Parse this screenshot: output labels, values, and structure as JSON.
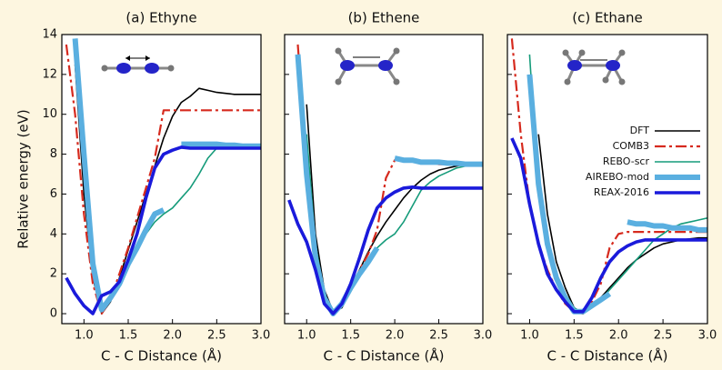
{
  "chart_data": [
    {
      "type": "line",
      "title": "(a) Ethyne",
      "xlabel": "C - C Distance (Å)",
      "ylabel": "Relative energy (eV)",
      "xlim": [
        0.75,
        3.0
      ],
      "ylim": [
        -0.5,
        14
      ],
      "xticks": [
        {
          "value": 1.0,
          "label": "1.0"
        },
        1.5,
        {
          "value": 2.0,
          "label": "2.0"
        },
        2.5,
        {
          "value": 3.0,
          "label": "3.0"
        }
      ],
      "yticks": [
        0,
        2,
        4,
        6,
        8,
        10,
        12,
        14
      ],
      "x": [
        0.8,
        0.9,
        1.0,
        1.1,
        1.2,
        1.3,
        1.4,
        1.5,
        1.6,
        1.7,
        1.8,
        1.9,
        2.0,
        2.1,
        2.2,
        2.3,
        2.4,
        2.5,
        2.6,
        2.7,
        2.8,
        2.9,
        3.0
      ],
      "series": [
        {
          "color": "#000000",
          "style": "solid",
          "values": [
            null,
            12.5,
            6.0,
            1.8,
            0.0,
            0.6,
            1.8,
            3.2,
            4.6,
            6.0,
            7.4,
            8.8,
            9.9,
            10.6,
            10.9,
            11.3,
            11.2,
            11.1,
            11.05,
            11.0,
            11.0,
            11.0,
            11.0
          ]
        },
        {
          "color": "#d62a1e",
          "style": "dashed",
          "values": [
            13.5,
            10.0,
            5.0,
            1.5,
            0.0,
            0.7,
            2.0,
            3.3,
            4.8,
            6.3,
            7.8,
            10.2,
            10.2,
            10.2,
            10.2,
            10.2,
            10.2,
            10.2,
            10.2,
            10.2,
            10.2,
            10.2,
            10.2
          ]
        },
        {
          "color": "#159b7a",
          "style": "solid",
          "values": [
            null,
            null,
            7.0,
            2.5,
            0.1,
            0.8,
            1.6,
            2.5,
            3.3,
            4.0,
            4.6,
            5.0,
            5.3,
            5.8,
            6.3,
            7.0,
            7.8,
            8.3,
            8.3,
            8.3,
            8.3,
            8.3,
            8.3
          ]
        },
        {
          "color": "#5aafe0",
          "style": "thick",
          "values": [
            null,
            13.8,
            8.0,
            2.5,
            0.2,
            0.8,
            1.5,
            2.5,
            3.3,
            4.2,
            5.0,
            5.2,
            null,
            8.5,
            8.5,
            8.5,
            8.5,
            8.5,
            8.45,
            8.45,
            8.4,
            8.4,
            8.4
          ]
        },
        {
          "color": "#1a1adb",
          "style": "medium",
          "values": [
            1.8,
            1.0,
            0.4,
            0.0,
            0.9,
            1.1,
            1.6,
            2.7,
            4.0,
            5.8,
            7.3,
            8.0,
            8.2,
            8.35,
            8.3,
            8.3,
            8.3,
            8.3,
            8.3,
            8.3,
            8.3,
            8.3,
            8.3
          ]
        }
      ]
    },
    {
      "type": "line",
      "title": "(b) Ethene",
      "xlabel": "C - C Distance (Å)",
      "xlim": [
        0.75,
        3.0
      ],
      "ylim": [
        -0.5,
        14
      ],
      "xticks": [
        {
          "value": 1.0,
          "label": "1.0"
        },
        1.5,
        {
          "value": 2.0,
          "label": "2.0"
        },
        2.5,
        {
          "value": 3.0,
          "label": "3.0"
        }
      ],
      "yticks": [
        0,
        2,
        4,
        6,
        8,
        10,
        12,
        14
      ],
      "x": [
        0.8,
        0.9,
        1.0,
        1.1,
        1.2,
        1.3,
        1.4,
        1.5,
        1.6,
        1.7,
        1.8,
        1.9,
        2.0,
        2.1,
        2.2,
        2.3,
        2.4,
        2.5,
        2.6,
        2.7,
        2.8,
        2.9,
        3.0
      ],
      "series": [
        {
          "color": "#000000",
          "style": "solid",
          "values": [
            null,
            null,
            10.5,
            4.0,
            1.2,
            0.1,
            0.3,
            1.2,
            2.2,
            3.1,
            3.9,
            4.6,
            5.2,
            5.8,
            6.3,
            6.7,
            7.0,
            7.2,
            7.3,
            7.4,
            7.5,
            7.5,
            7.5
          ]
        },
        {
          "color": "#d62a1e",
          "style": "dashed",
          "values": [
            null,
            13.5,
            7.5,
            3.0,
            0.8,
            0.0,
            0.4,
            1.2,
            2.2,
            3.0,
            4.2,
            6.8,
            7.7,
            7.7,
            7.6,
            7.6,
            7.6,
            7.5,
            7.5,
            7.5,
            7.5,
            7.5,
            7.5
          ]
        },
        {
          "color": "#159b7a",
          "style": "solid",
          "values": [
            null,
            null,
            9.0,
            3.5,
            1.0,
            0.0,
            0.4,
            1.2,
            2.0,
            2.8,
            3.3,
            3.7,
            4.0,
            4.6,
            5.4,
            6.2,
            6.6,
            6.9,
            7.1,
            7.3,
            7.4,
            7.5,
            7.5
          ]
        },
        {
          "color": "#5aafe0",
          "style": "thick",
          "values": [
            null,
            13.0,
            7.0,
            2.8,
            0.8,
            0.0,
            0.5,
            1.3,
            2.0,
            2.6,
            3.3,
            null,
            7.8,
            7.7,
            7.7,
            7.6,
            7.6,
            7.6,
            7.55,
            7.55,
            7.5,
            7.5,
            7.5
          ]
        },
        {
          "color": "#1a1adb",
          "style": "medium",
          "values": [
            5.7,
            4.5,
            3.6,
            2.2,
            0.5,
            0.0,
            0.5,
            1.5,
            2.8,
            4.2,
            5.3,
            5.8,
            6.1,
            6.3,
            6.35,
            6.3,
            6.3,
            6.3,
            6.3,
            6.3,
            6.3,
            6.3,
            6.3
          ]
        }
      ]
    },
    {
      "type": "line",
      "title": "(c) Ethane",
      "xlabel": "C - C Distance (Å)",
      "xlim": [
        0.75,
        3.0
      ],
      "ylim": [
        -0.5,
        14
      ],
      "xticks": [
        {
          "value": 1.0,
          "label": "1.0"
        },
        1.5,
        {
          "value": 2.0,
          "label": "2.0"
        },
        2.5,
        {
          "value": 3.0,
          "label": "3.0"
        }
      ],
      "yticks": [
        0,
        2,
        4,
        6,
        8,
        10,
        12,
        14
      ],
      "x": [
        0.8,
        0.9,
        1.0,
        1.1,
        1.2,
        1.3,
        1.4,
        1.5,
        1.6,
        1.7,
        1.8,
        1.9,
        2.0,
        2.1,
        2.2,
        2.3,
        2.4,
        2.5,
        2.6,
        2.7,
        2.8,
        2.9,
        3.0
      ],
      "legend": "upper right",
      "series": [
        {
          "name": "DFT",
          "color": "#000000",
          "style": "solid",
          "values": [
            null,
            null,
            null,
            9.0,
            5.0,
            2.6,
            1.3,
            0.3,
            0.0,
            0.3,
            0.8,
            1.3,
            1.8,
            2.3,
            2.7,
            3.0,
            3.3,
            3.5,
            3.6,
            3.7,
            3.75,
            3.8,
            3.8
          ]
        },
        {
          "name": "COMB3",
          "color": "#d62a1e",
          "style": "dashed",
          "values": [
            13.8,
            9.0,
            5.5,
            3.5,
            2.2,
            1.2,
            0.5,
            0.1,
            0.0,
            0.6,
            1.5,
            3.3,
            4.0,
            4.1,
            4.1,
            4.1,
            4.1,
            4.1,
            4.1,
            4.1,
            4.1,
            4.1,
            4.1
          ]
        },
        {
          "name": "REBO-scr",
          "color": "#159b7a",
          "style": "solid",
          "values": [
            null,
            null,
            13.0,
            6.0,
            3.5,
            2.0,
            1.0,
            0.3,
            0.0,
            0.3,
            0.7,
            1.2,
            1.7,
            2.2,
            2.7,
            3.2,
            3.7,
            4.0,
            4.3,
            4.5,
            4.6,
            4.7,
            4.8
          ]
        },
        {
          "name": "AIREBO-mod",
          "color": "#5aafe0",
          "style": "thick",
          "values": [
            null,
            null,
            12.0,
            6.5,
            3.5,
            1.8,
            0.8,
            0.1,
            0.1,
            0.4,
            0.7,
            1.0,
            null,
            4.6,
            4.5,
            4.5,
            4.4,
            4.4,
            4.3,
            4.3,
            4.3,
            4.2,
            4.2
          ]
        },
        {
          "name": "REAX-2016",
          "color": "#1a1adb",
          "style": "medium",
          "values": [
            8.8,
            7.8,
            5.5,
            3.5,
            2.0,
            1.2,
            0.6,
            0.1,
            0.1,
            0.8,
            1.8,
            2.6,
            3.1,
            3.4,
            3.6,
            3.7,
            3.7,
            3.7,
            3.7,
            3.7,
            3.7,
            3.7,
            3.7
          ]
        }
      ]
    }
  ]
}
